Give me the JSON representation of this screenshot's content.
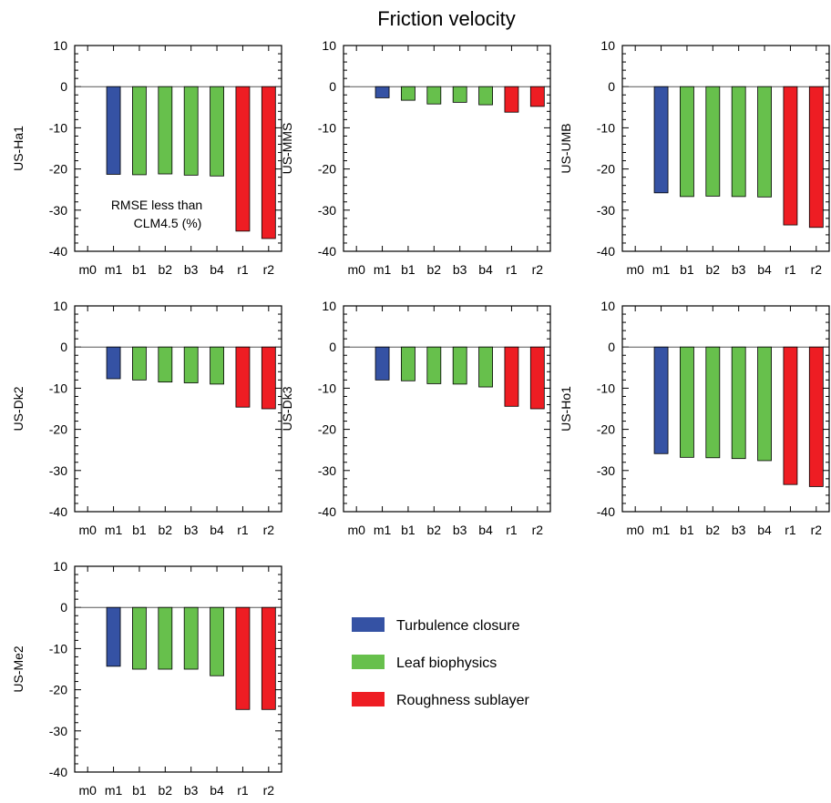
{
  "figure_title": "Friction velocity",
  "annotation": [
    "RMSE less than",
    "CLM4.5 (%)"
  ],
  "colors": {
    "turbulence": "#3552a4",
    "leaf": "#67c04c",
    "roughness": "#ee1d23",
    "axis": "#000000",
    "zero_line": "#555555"
  },
  "legend": [
    {
      "label": "Turbulence closure",
      "group": "turbulence"
    },
    {
      "label": "Leaf biophysics",
      "group": "leaf"
    },
    {
      "label": "Roughness sublayer",
      "group": "roughness"
    }
  ],
  "chart_data": [
    {
      "type": "bar",
      "ylabel": "US-Ha1",
      "ylim": [
        -40,
        10
      ],
      "yticks": [
        "10",
        "0",
        "-10",
        "-20",
        "-30",
        "-40"
      ],
      "categories": [
        "m0",
        "m1",
        "b1",
        "b2",
        "b3",
        "b4",
        "r1",
        "r2"
      ],
      "values": [
        0,
        -21.3,
        -21.4,
        -21.2,
        -21.5,
        -21.7,
        -35.1,
        -36.9
      ],
      "groups": [
        "none",
        "turbulence",
        "leaf",
        "leaf",
        "leaf",
        "leaf",
        "roughness",
        "roughness"
      ]
    },
    {
      "type": "bar",
      "ylabel": "US-MMS",
      "ylim": [
        -40,
        10
      ],
      "yticks": [
        "10",
        "0",
        "-10",
        "-20",
        "-30",
        "-40"
      ],
      "categories": [
        "m0",
        "m1",
        "b1",
        "b2",
        "b3",
        "b4",
        "r1",
        "r2"
      ],
      "values": [
        0,
        -2.7,
        -3.3,
        -4.2,
        -3.8,
        -4.4,
        -6.2,
        -4.8
      ],
      "groups": [
        "none",
        "turbulence",
        "leaf",
        "leaf",
        "leaf",
        "leaf",
        "roughness",
        "roughness"
      ]
    },
    {
      "type": "bar",
      "ylabel": "US-UMB",
      "ylim": [
        -40,
        10
      ],
      "yticks": [
        "10",
        "0",
        "-10",
        "-20",
        "-30",
        "-40"
      ],
      "categories": [
        "m0",
        "m1",
        "b1",
        "b2",
        "b3",
        "b4",
        "r1",
        "r2"
      ],
      "values": [
        0,
        -25.8,
        -26.7,
        -26.6,
        -26.7,
        -26.8,
        -33.6,
        -34.2
      ],
      "groups": [
        "none",
        "turbulence",
        "leaf",
        "leaf",
        "leaf",
        "leaf",
        "roughness",
        "roughness"
      ]
    },
    {
      "type": "bar",
      "ylabel": "US-Dk2",
      "ylim": [
        -40,
        10
      ],
      "yticks": [
        "10",
        "0",
        "-10",
        "-20",
        "-30",
        "-40"
      ],
      "categories": [
        "m0",
        "m1",
        "b1",
        "b2",
        "b3",
        "b4",
        "r1",
        "r2"
      ],
      "values": [
        0,
        -7.7,
        -8.0,
        -8.5,
        -8.7,
        -9.0,
        -14.6,
        -15.0
      ],
      "groups": [
        "none",
        "turbulence",
        "leaf",
        "leaf",
        "leaf",
        "leaf",
        "roughness",
        "roughness"
      ]
    },
    {
      "type": "bar",
      "ylabel": "US-Dk3",
      "ylim": [
        -40,
        10
      ],
      "yticks": [
        "10",
        "0",
        "-10",
        "-20",
        "-30",
        "-40"
      ],
      "categories": [
        "m0",
        "m1",
        "b1",
        "b2",
        "b3",
        "b4",
        "r1",
        "r2"
      ],
      "values": [
        0,
        -8.0,
        -8.2,
        -8.9,
        -9.0,
        -9.7,
        -14.4,
        -15.0
      ],
      "groups": [
        "none",
        "turbulence",
        "leaf",
        "leaf",
        "leaf",
        "leaf",
        "roughness",
        "roughness"
      ]
    },
    {
      "type": "bar",
      "ylabel": "US-Ho1",
      "ylim": [
        -40,
        10
      ],
      "yticks": [
        "10",
        "0",
        "-10",
        "-20",
        "-30",
        "-40"
      ],
      "categories": [
        "m0",
        "m1",
        "b1",
        "b2",
        "b3",
        "b4",
        "r1",
        "r2"
      ],
      "values": [
        0,
        -25.9,
        -26.8,
        -26.9,
        -27.1,
        -27.6,
        -33.4,
        -33.9
      ],
      "groups": [
        "none",
        "turbulence",
        "leaf",
        "leaf",
        "leaf",
        "leaf",
        "roughness",
        "roughness"
      ]
    },
    {
      "type": "bar",
      "ylabel": "US-Me2",
      "ylim": [
        -40,
        10
      ],
      "yticks": [
        "10",
        "0",
        "-10",
        "-20",
        "-30",
        "-40"
      ],
      "categories": [
        "m0",
        "m1",
        "b1",
        "b2",
        "b3",
        "b4",
        "r1",
        "r2"
      ],
      "values": [
        0,
        -14.3,
        -15.0,
        -15.0,
        -15.0,
        -16.6,
        -24.8,
        -24.8
      ],
      "groups": [
        "none",
        "turbulence",
        "leaf",
        "leaf",
        "leaf",
        "leaf",
        "roughness",
        "roughness"
      ]
    }
  ]
}
